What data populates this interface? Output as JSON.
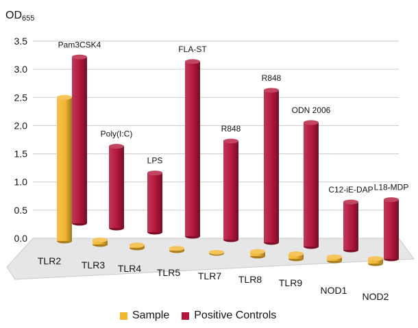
{
  "chart_data": {
    "type": "bar",
    "ylabel_base": "OD",
    "ylabel_sub": "655",
    "ylim": [
      0,
      3.5
    ],
    "yticks": [
      "0.0",
      "0.5",
      "1.0",
      "1.5",
      "2.0",
      "2.5",
      "3.0",
      "3.5"
    ],
    "categories": [
      "TLR2",
      "TLR3",
      "TLR4",
      "TLR5",
      "TLR7",
      "TLR8",
      "TLR9",
      "NOD1",
      "NOD2"
    ],
    "series": [
      {
        "name": "Sample",
        "color": "#f2b630",
        "values": [
          2.55,
          0.08,
          0.05,
          0.04,
          0.02,
          0.08,
          0.09,
          0.07,
          0.09
        ]
      },
      {
        "name": "Positive Controls",
        "color": "#b3163a",
        "values": [
          2.95,
          1.45,
          1.05,
          3.1,
          1.75,
          2.7,
          2.2,
          0.85,
          1.05
        ]
      }
    ],
    "annotations": [
      "Pam3CSK4",
      "Poly(I:C)",
      "LPS",
      "FLA-ST",
      "R848",
      "R848",
      "ODN 2006",
      "C12-iE-DAP",
      "L18-MDP"
    ],
    "grid": true,
    "legend_position": "bottom"
  }
}
